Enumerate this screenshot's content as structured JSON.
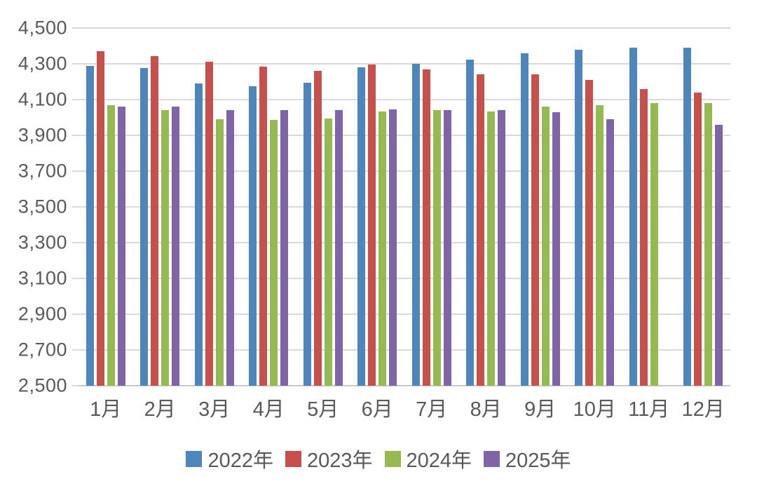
{
  "chart_data": {
    "type": "bar",
    "title": "",
    "xlabel": "",
    "ylabel": "",
    "categories": [
      "1月",
      "2月",
      "3月",
      "4月",
      "5月",
      "6月",
      "7月",
      "8月",
      "9月",
      "10月",
      "11月",
      "12月"
    ],
    "series": [
      {
        "name": "2022年",
        "color": "#4e86bc",
        "values": [
          4290,
          4275,
          4190,
          4175,
          4195,
          4280,
          4300,
          4325,
          4360,
          4380,
          4390,
          4390
        ]
      },
      {
        "name": "2023年",
        "color": "#c6504c",
        "values": [
          4370,
          4345,
          4310,
          4285,
          4260,
          4295,
          4270,
          4240,
          4240,
          4210,
          4160,
          4140
        ]
      },
      {
        "name": "2024年",
        "color": "#94ba51",
        "values": [
          4070,
          4040,
          3990,
          3985,
          3995,
          4035,
          4040,
          4035,
          4060,
          4070,
          4080,
          4080
        ]
      },
      {
        "name": "2025年",
        "color": "#8064a8",
        "values": [
          4060,
          4060,
          4040,
          4040,
          4040,
          4045,
          4040,
          4040,
          4030,
          3990,
          null,
          3960
        ]
      }
    ],
    "ylim": [
      2500,
      4500
    ],
    "y_tick_step": 200,
    "y_tick_labels": [
      "2,500",
      "2,700",
      "2,900",
      "3,100",
      "3,300",
      "3,500",
      "3,700",
      "3,900",
      "4,100",
      "4,300",
      "4,500"
    ],
    "grid": true,
    "legend_position": "bottom",
    "colors": {
      "grid_color": "#d9d9d9",
      "axis_color": "#c9c9c9",
      "text_color": "#595959",
      "background": "#ffffff"
    }
  }
}
